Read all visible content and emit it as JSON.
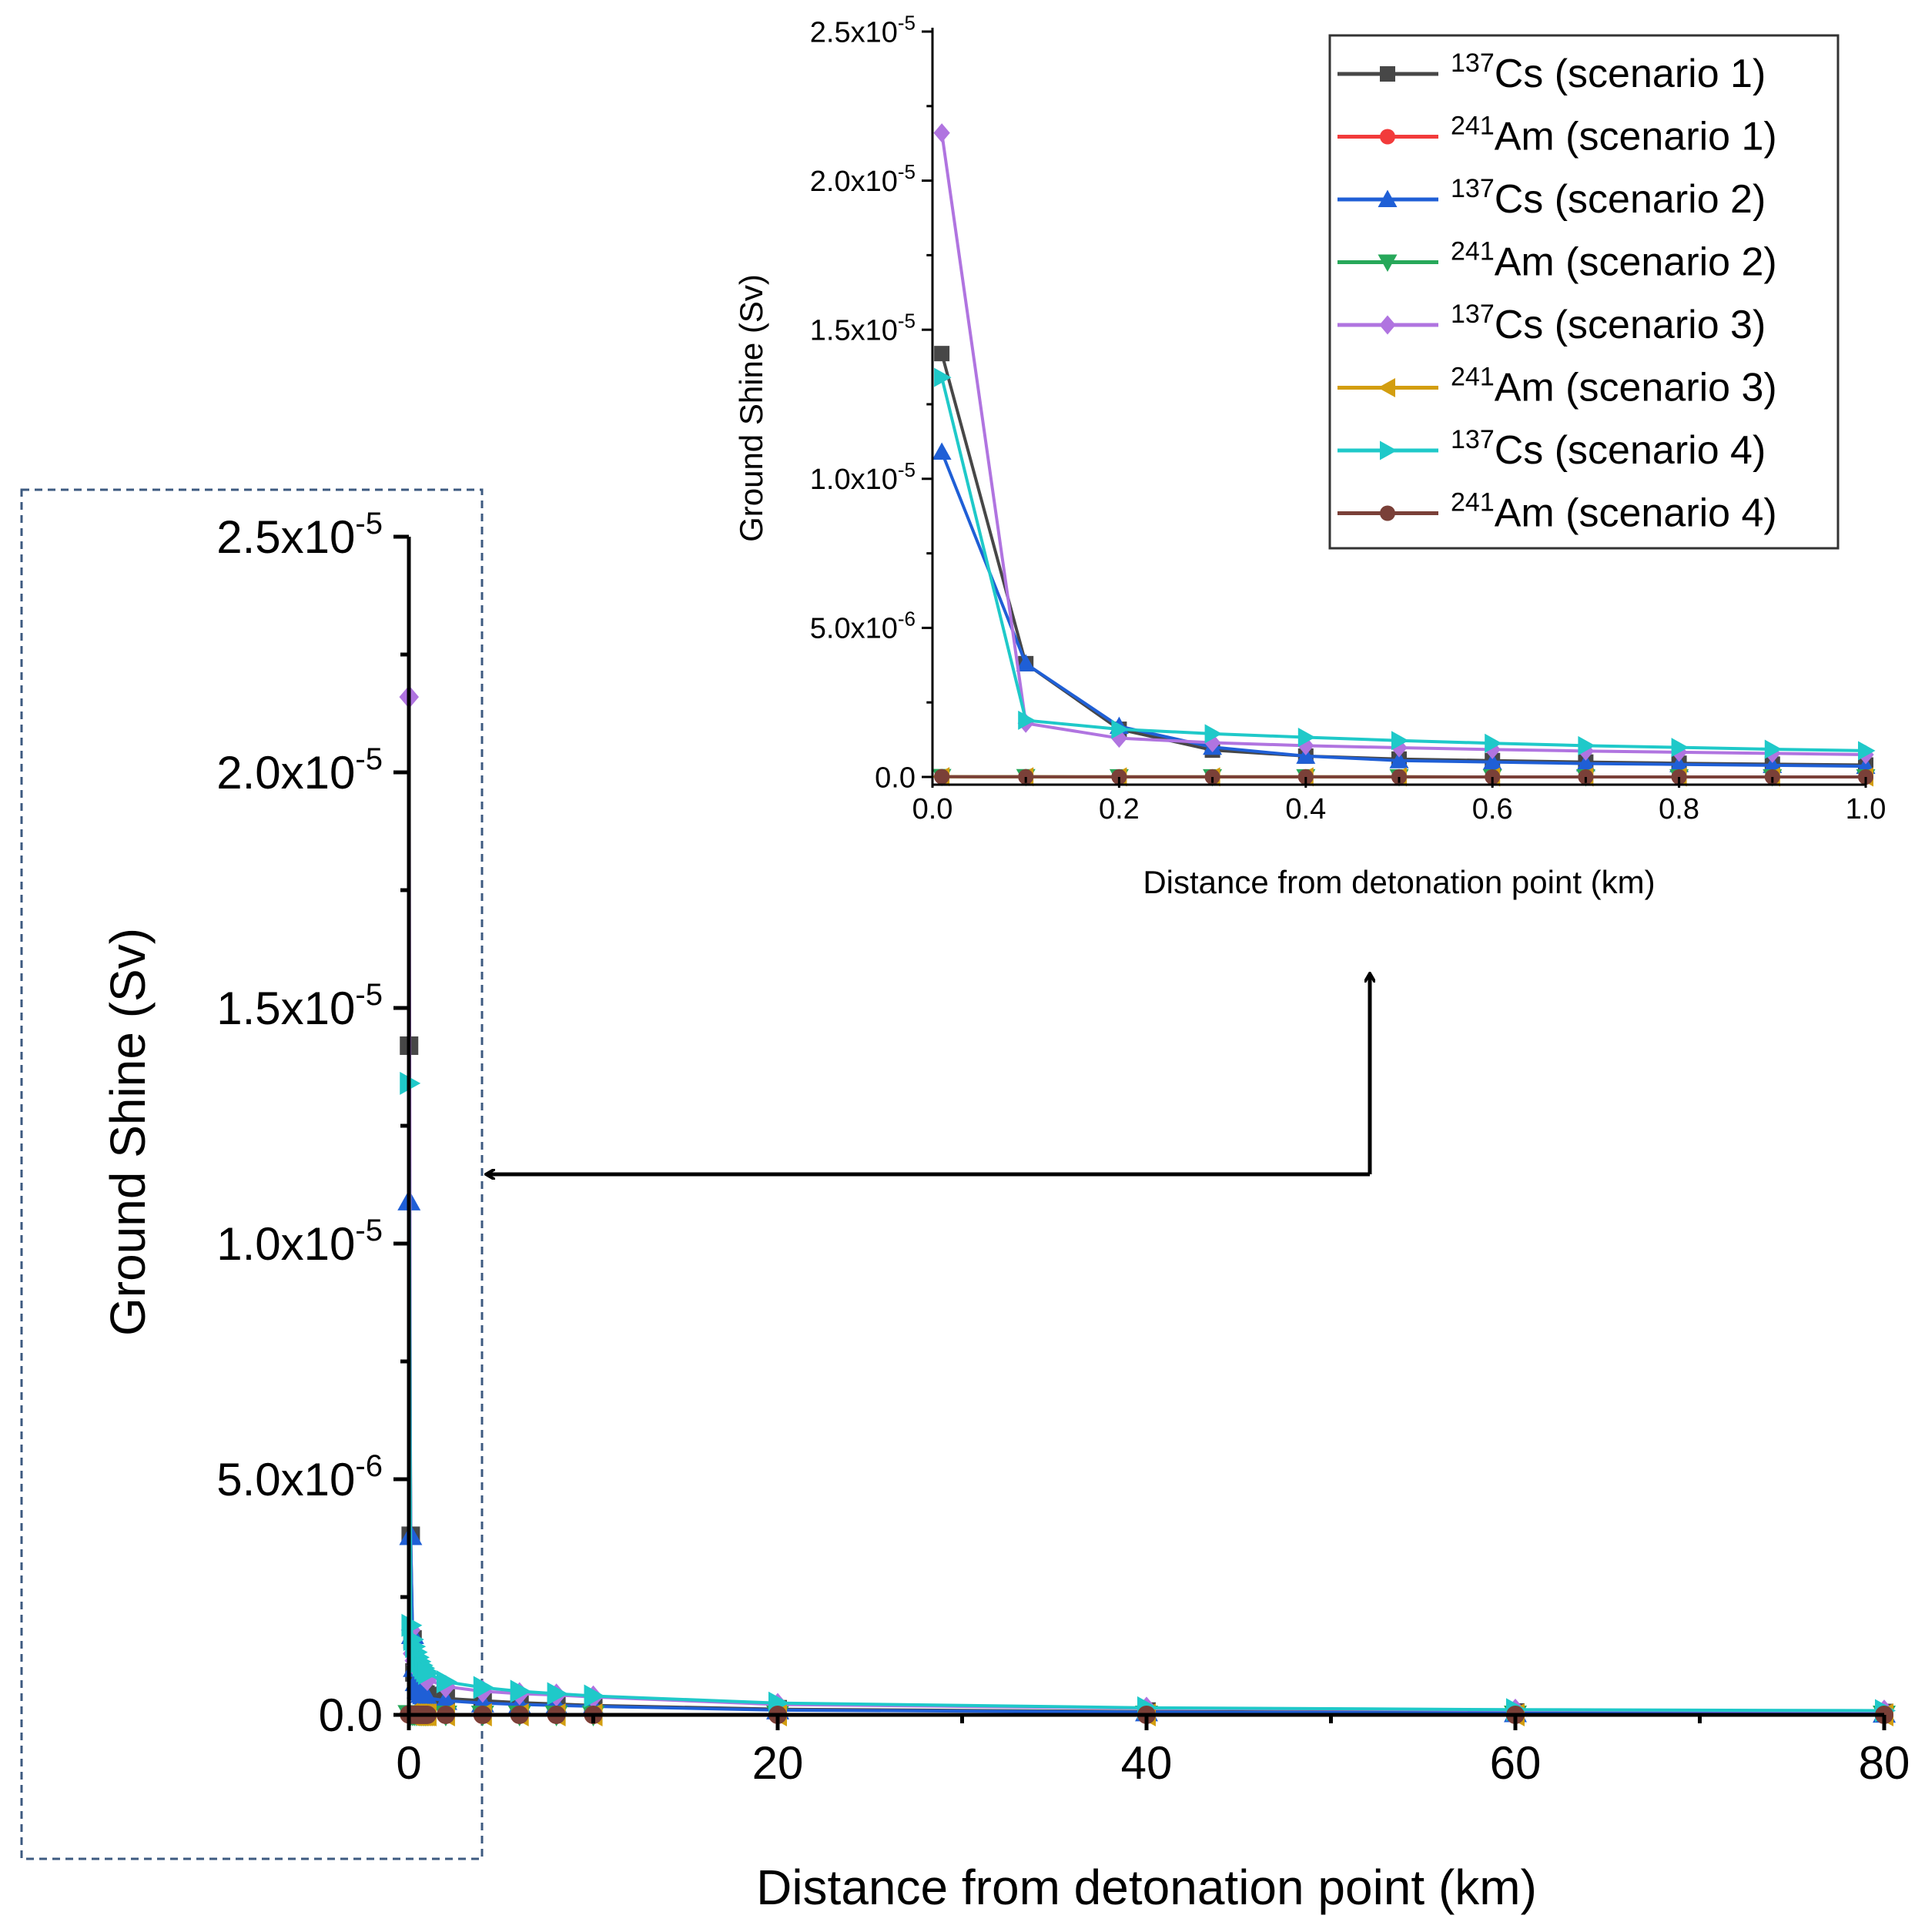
{
  "colors": {
    "cs1": "#474747",
    "am1": "#f23b3b",
    "cs2": "#1f5fd6",
    "am2": "#27a85a",
    "cs3": "#b074e0",
    "am3": "#d39e10",
    "cs4": "#1fc9c9",
    "am4": "#7a4038",
    "dash": "#3d5a80"
  },
  "chart_data": [
    {
      "id": "main",
      "type": "line",
      "xlabel": "Distance from detonation point (km)",
      "ylabel": "Ground Shine (Sv)",
      "xlim": [
        0,
        80
      ],
      "ylim": [
        0,
        2.5e-05
      ],
      "x_ticks": [
        "0",
        "20",
        "40",
        "60",
        "80"
      ],
      "y_ticks": [
        {
          "mant": "0.0",
          "exp": ""
        },
        {
          "mant": "5.0x10",
          "exp": "-6"
        },
        {
          "mant": "1.0x10",
          "exp": "-5"
        },
        {
          "mant": "1.5x10",
          "exp": "-5"
        },
        {
          "mant": "2.0x10",
          "exp": "-5"
        },
        {
          "mant": "2.5x10",
          "exp": "-5"
        }
      ],
      "x": [
        0.01,
        0.1,
        0.2,
        0.3,
        0.4,
        0.5,
        0.6,
        0.7,
        0.8,
        0.9,
        1,
        2,
        4,
        6,
        8,
        10,
        20,
        40,
        60,
        80
      ],
      "series": [
        {
          "key": "cs1",
          "marker": "square",
          "values": [
            1.42e-05,
            3.8e-06,
            1.6e-06,
            9e-07,
            7e-07,
            6e-07,
            5.5e-07,
            5e-07,
            4.6e-07,
            4.3e-07,
            4e-07,
            3.5e-07,
            3e-07,
            2.6e-07,
            2.3e-07,
            2e-07,
            1.2e-07,
            7e-08,
            5e-08,
            4e-08
          ]
        },
        {
          "key": "am1",
          "marker": "circle",
          "values": [
            1e-08,
            5e-09,
            3e-09,
            2e-09,
            2e-09,
            2e-09,
            1e-09,
            1e-09,
            1e-09,
            1e-09,
            1e-09,
            1e-09,
            1e-09,
            1e-09,
            1e-09,
            1e-09,
            1e-09,
            1e-09,
            1e-09,
            1e-09
          ]
        },
        {
          "key": "cs2",
          "marker": "triangle-up",
          "values": [
            1.09e-05,
            3.8e-06,
            1.7e-06,
            1e-06,
            7e-07,
            5.5e-07,
            5e-07,
            4.5e-07,
            4.2e-07,
            3.9e-07,
            3.6e-07,
            3e-07,
            2.5e-07,
            2.2e-07,
            2e-07,
            1.8e-07,
            1e-07,
            6e-08,
            4e-08,
            3e-08
          ]
        },
        {
          "key": "am2",
          "marker": "triangle-down",
          "values": [
            1e-08,
            5e-09,
            3e-09,
            2e-09,
            2e-09,
            2e-09,
            1e-09,
            1e-09,
            1e-09,
            1e-09,
            1e-09,
            1e-09,
            1e-09,
            1e-09,
            1e-09,
            1e-09,
            1e-09,
            1e-09,
            1e-09,
            1e-09
          ]
        },
        {
          "key": "cs3",
          "marker": "diamond",
          "values": [
            2.16e-05,
            1.8e-06,
            1.3e-06,
            1.15e-06,
            1.05e-06,
            9.8e-07,
            9.2e-07,
            8.7e-07,
            8.3e-07,
            7.9e-07,
            7.5e-07,
            6e-07,
            5e-07,
            4.5e-07,
            4.2e-07,
            3.8e-07,
            2.2e-07,
            1.4e-07,
            1e-07,
            8e-08
          ]
        },
        {
          "key": "am3",
          "marker": "triangle-left",
          "values": [
            1e-08,
            5e-09,
            3e-09,
            2e-09,
            2e-09,
            2e-09,
            1e-09,
            1e-09,
            1e-09,
            1e-09,
            1e-09,
            1e-09,
            1e-09,
            1e-09,
            1e-09,
            1e-09,
            1e-09,
            1e-09,
            1e-09,
            1e-09
          ]
        },
        {
          "key": "cs4",
          "marker": "triangle-right",
          "values": [
            1.34e-05,
            1.9e-06,
            1.6e-06,
            1.45e-06,
            1.33e-06,
            1.22e-06,
            1.13e-06,
            1.05e-06,
            9.9e-07,
            9.3e-07,
            8.8e-07,
            7e-07,
            5.8e-07,
            5e-07,
            4.5e-07,
            4e-07,
            2.5e-07,
            1.5e-07,
            1.1e-07,
            9e-08
          ]
        },
        {
          "key": "am4",
          "marker": "circle",
          "values": [
            1e-08,
            5e-09,
            3e-09,
            2e-09,
            2e-09,
            2e-09,
            1e-09,
            1e-09,
            1e-09,
            1e-09,
            1e-09,
            1e-09,
            1e-09,
            1e-09,
            1e-09,
            1e-09,
            1e-09,
            1e-09,
            1e-09,
            1e-09
          ]
        }
      ]
    },
    {
      "id": "inset",
      "type": "line",
      "xlabel": "Distance from detonation point (km)",
      "ylabel": "Ground Shine (Sv)",
      "xlim": [
        0,
        1.0
      ],
      "ylim": [
        0,
        2.5e-05
      ],
      "x_ticks": [
        "0.0",
        "0.2",
        "0.4",
        "0.6",
        "0.8",
        "1.0"
      ],
      "y_ticks": [
        {
          "mant": "0.0",
          "exp": ""
        },
        {
          "mant": "5.0x10",
          "exp": "-6"
        },
        {
          "mant": "1.0x10",
          "exp": "-5"
        },
        {
          "mant": "1.5x10",
          "exp": "-5"
        },
        {
          "mant": "2.0x10",
          "exp": "-5"
        },
        {
          "mant": "2.5x10",
          "exp": "-5"
        }
      ],
      "x": [
        0.01,
        0.1,
        0.2,
        0.3,
        0.4,
        0.5,
        0.6,
        0.7,
        0.8,
        0.9,
        1.0
      ],
      "legend_position": "top-right",
      "legend": [
        {
          "key": "cs1",
          "iso": "137",
          "el": "Cs",
          "label": " (scenario 1)"
        },
        {
          "key": "am1",
          "iso": "241",
          "el": "Am",
          "label": " (scenario 1)"
        },
        {
          "key": "cs2",
          "iso": "137",
          "el": "Cs",
          "label": " (scenario 2)"
        },
        {
          "key": "am2",
          "iso": "241",
          "el": "Am",
          "label": " (scenario 2)"
        },
        {
          "key": "cs3",
          "iso": "137",
          "el": "Cs",
          "label": " (scenario 3)"
        },
        {
          "key": "am3",
          "iso": "241",
          "el": "Am",
          "label": " (scenario 3)"
        },
        {
          "key": "cs4",
          "iso": "137",
          "el": "Cs",
          "label": " (scenario 4)"
        },
        {
          "key": "am4",
          "iso": "241",
          "el": "Am",
          "label": " (scenario 4)"
        }
      ],
      "series": [
        {
          "key": "cs1",
          "marker": "square",
          "values": [
            1.42e-05,
            3.8e-06,
            1.6e-06,
            9e-07,
            7e-07,
            6e-07,
            5.5e-07,
            5e-07,
            4.6e-07,
            4.3e-07,
            4e-07
          ]
        },
        {
          "key": "am1",
          "marker": "circle",
          "values": [
            1e-08,
            5e-09,
            3e-09,
            2e-09,
            2e-09,
            2e-09,
            1e-09,
            1e-09,
            1e-09,
            1e-09,
            1e-09
          ]
        },
        {
          "key": "cs2",
          "marker": "triangle-up",
          "values": [
            1.09e-05,
            3.8e-06,
            1.7e-06,
            1e-06,
            7e-07,
            5.5e-07,
            5e-07,
            4.5e-07,
            4.2e-07,
            3.9e-07,
            3.6e-07
          ]
        },
        {
          "key": "am2",
          "marker": "triangle-down",
          "values": [
            1e-08,
            5e-09,
            3e-09,
            2e-09,
            2e-09,
            2e-09,
            1e-09,
            1e-09,
            1e-09,
            1e-09,
            1e-09
          ]
        },
        {
          "key": "cs3",
          "marker": "diamond",
          "values": [
            2.16e-05,
            1.8e-06,
            1.3e-06,
            1.15e-06,
            1.05e-06,
            9.8e-07,
            9.2e-07,
            8.7e-07,
            8.3e-07,
            7.9e-07,
            7.5e-07
          ]
        },
        {
          "key": "am3",
          "marker": "triangle-left",
          "values": [
            1e-08,
            5e-09,
            3e-09,
            2e-09,
            2e-09,
            2e-09,
            1e-09,
            1e-09,
            1e-09,
            1e-09,
            1e-09
          ]
        },
        {
          "key": "cs4",
          "marker": "triangle-right",
          "values": [
            1.34e-05,
            1.9e-06,
            1.6e-06,
            1.45e-06,
            1.33e-06,
            1.22e-06,
            1.13e-06,
            1.05e-06,
            9.9e-07,
            9.3e-07,
            8.8e-07
          ]
        },
        {
          "key": "am4",
          "marker": "circle",
          "values": [
            1e-08,
            5e-09,
            3e-09,
            2e-09,
            2e-09,
            2e-09,
            1e-09,
            1e-09,
            1e-09,
            1e-09,
            1e-09
          ]
        }
      ]
    }
  ]
}
